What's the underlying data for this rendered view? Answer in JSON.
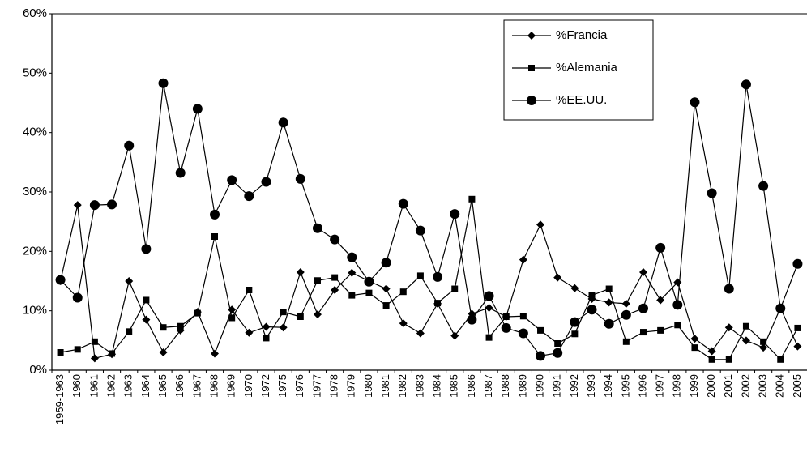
{
  "chart_data": {
    "type": "line",
    "categories": [
      "1959-1963",
      "1960",
      "1961",
      "1962",
      "1963",
      "1964",
      "1965",
      "1966",
      "1967",
      "1968",
      "1969",
      "1970",
      "1972",
      "1975",
      "1976",
      "1977",
      "1978",
      "1979",
      "1980",
      "1981",
      "1982",
      "1983",
      "1984",
      "1985",
      "1986",
      "1987",
      "1988",
      "1989",
      "1990",
      "1991",
      "1992",
      "1993",
      "1994",
      "1995",
      "1996",
      "1997",
      "1998",
      "1999",
      "2000",
      "2001",
      "2002",
      "2003",
      "2004",
      "2005"
    ],
    "series": [
      {
        "name": "%Francia",
        "color": "#000000",
        "marker": "diamond",
        "values": [
          15,
          27.8,
          2,
          2.7,
          15,
          8.5,
          3,
          6.7,
          9.8,
          2.8,
          10.2,
          6.3,
          7.3,
          7.2,
          16.5,
          9.4,
          13.5,
          16.4,
          15,
          13.7,
          7.9,
          6.2,
          11.2,
          5.8,
          9.5,
          10.5,
          9,
          18.6,
          24.5,
          15.6,
          13.8,
          12,
          11.4,
          11.2,
          16.5,
          11.8,
          14.8,
          5.3,
          3.2,
          7.2,
          5,
          3.8,
          10.5,
          4
        ]
      },
      {
        "name": "%Alemania",
        "color": "#000000",
        "marker": "square",
        "values": [
          3,
          3.5,
          4.8,
          2.8,
          6.5,
          11.8,
          7.2,
          7.4,
          9.6,
          22.5,
          8.8,
          13.5,
          5.4,
          9.8,
          9,
          15.1,
          15.6,
          12.6,
          13,
          10.9,
          13.2,
          15.9,
          11.3,
          13.7,
          28.8,
          5.5,
          9,
          9.1,
          6.7,
          4.5,
          6.1,
          12.6,
          13.7,
          4.8,
          6.4,
          6.7,
          7.6,
          3.8,
          1.8,
          1.8,
          7.4,
          4.8,
          1.8,
          7.1
        ]
      },
      {
        "name": "%EE.UU.",
        "color": "#000000",
        "marker": "circle",
        "values": [
          15.2,
          12.2,
          27.8,
          27.9,
          37.8,
          20.4,
          48.3,
          33.2,
          44,
          26.2,
          32,
          29.3,
          31.7,
          41.7,
          32.2,
          23.9,
          22,
          19,
          14.9,
          18.1,
          28,
          23.5,
          15.7,
          26.3,
          8.5,
          12.5,
          7.1,
          6.2,
          2.4,
          2.9,
          8.1,
          10.2,
          7.8,
          9.3,
          10.4,
          20.6,
          11,
          45.1,
          29.8,
          13.7,
          48.1,
          31,
          10.4,
          17.9
        ]
      }
    ],
    "ylim": [
      0,
      60
    ],
    "yticks": [
      {
        "value": 0,
        "label": "0%"
      },
      {
        "value": 10,
        "label": "10%"
      },
      {
        "value": 20,
        "label": "20%"
      },
      {
        "value": 30,
        "label": "30%"
      },
      {
        "value": 40,
        "label": "40%"
      },
      {
        "value": 50,
        "label": "50%"
      },
      {
        "value": 60,
        "label": "60%"
      }
    ],
    "legend": "top-right"
  }
}
